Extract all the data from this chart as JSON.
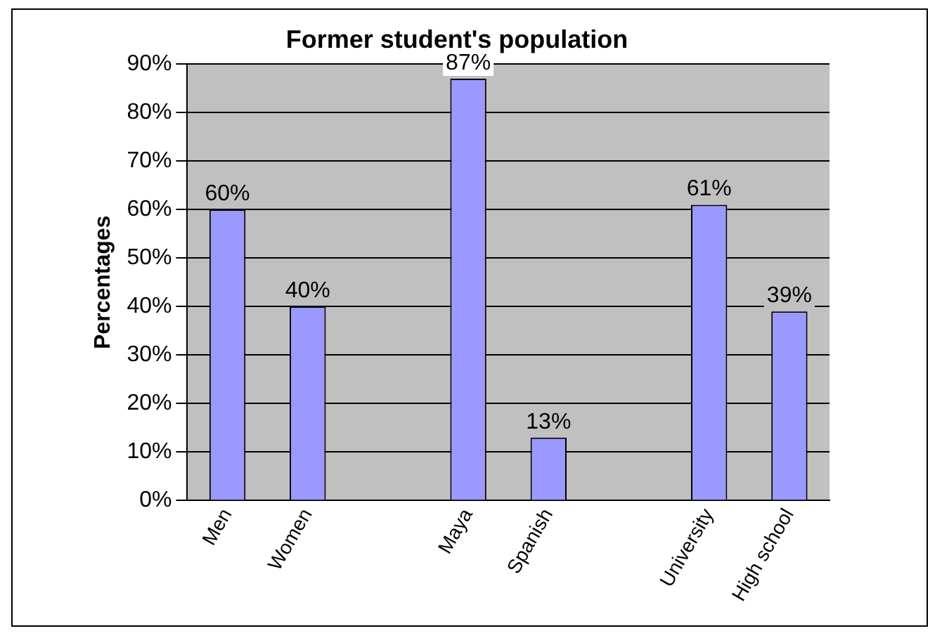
{
  "chart_data": {
    "type": "bar",
    "title": "Former student's population",
    "ylabel": "Percentages",
    "categories": [
      "Men",
      "Women",
      null,
      "Maya",
      "Spanish",
      null,
      "University",
      "High school"
    ],
    "values": [
      60,
      40,
      null,
      87,
      13,
      null,
      61,
      39
    ],
    "value_labels": [
      "60%",
      "40%",
      null,
      "87%",
      "13%",
      null,
      "61%",
      "39%"
    ],
    "color": "#9999ff",
    "ylim": [
      0,
      90
    ],
    "yticks": [
      {
        "value": 0,
        "label": "0%"
      },
      {
        "value": 10,
        "label": "10%"
      },
      {
        "value": 20,
        "label": "20%"
      },
      {
        "value": 30,
        "label": "30%"
      },
      {
        "value": 40,
        "label": "40%"
      },
      {
        "value": 50,
        "label": "50%"
      },
      {
        "value": 60,
        "label": "60%"
      },
      {
        "value": 70,
        "label": "70%"
      },
      {
        "value": 80,
        "label": "80%"
      },
      {
        "value": 90,
        "label": "90%"
      }
    ],
    "grid": "y",
    "legend": false
  }
}
